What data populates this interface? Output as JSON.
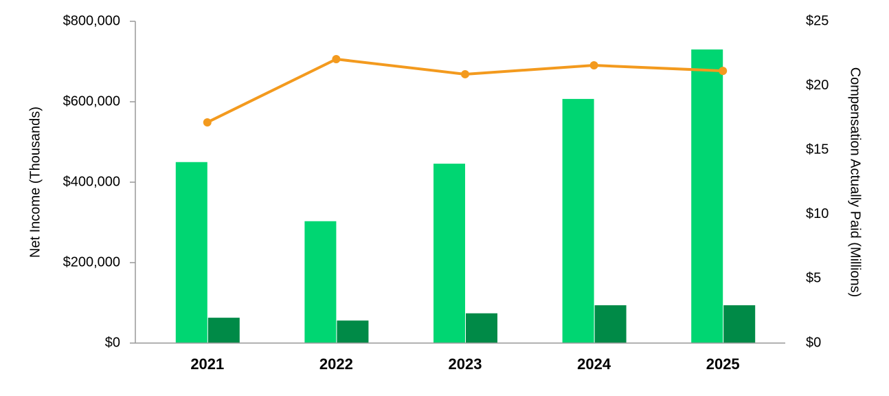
{
  "chart_data": {
    "type": "bar-line",
    "categories": [
      "2021",
      "2022",
      "2023",
      "2024",
      "2025"
    ],
    "series": [
      {
        "type": "bar",
        "color": "#00d672",
        "values": [
          450000,
          303000,
          446000,
          607000,
          730000
        ]
      },
      {
        "type": "bar",
        "color": "#008a47",
        "values": [
          63000,
          56000,
          74000,
          94000,
          94000
        ]
      },
      {
        "type": "line",
        "axis": "y2",
        "color": "#f39a1e",
        "values": [
          17.15,
          22.06,
          20.89,
          21.58,
          21.15
        ]
      }
    ],
    "ylabel": "Net Income (Thousands)",
    "y2label": "Compensation Actually Paid (Millions)",
    "ylim": [
      0,
      800000
    ],
    "yticks": [
      {
        "value": 0,
        "label": "$0"
      },
      {
        "value": 200000,
        "label": "$200,000"
      },
      {
        "value": 400000,
        "label": "$400,000"
      },
      {
        "value": 600000,
        "label": "$600,000"
      },
      {
        "value": 800000,
        "label": "$800,000"
      }
    ],
    "y2lim": [
      0,
      25
    ],
    "y2ticks": [
      {
        "value": 0,
        "label": "$0"
      },
      {
        "value": 5,
        "label": "$5"
      },
      {
        "value": 10,
        "label": "$10"
      },
      {
        "value": 15,
        "label": "$15"
      },
      {
        "value": 20,
        "label": "$20"
      },
      {
        "value": 25,
        "label": "$25"
      }
    ],
    "grid": false
  }
}
